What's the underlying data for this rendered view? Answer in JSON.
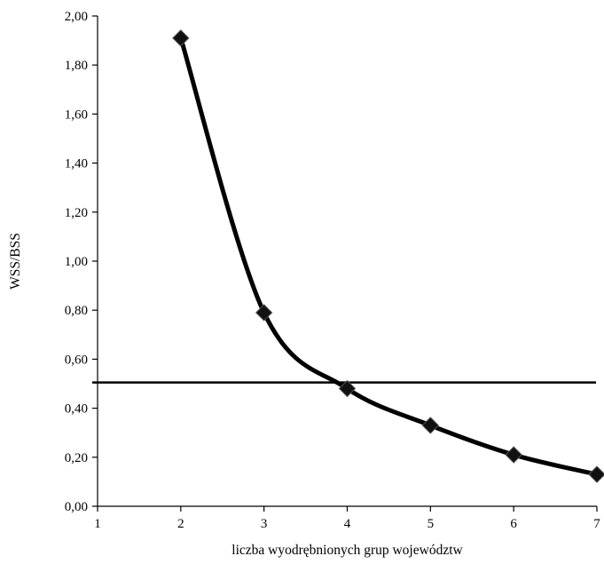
{
  "chart_data": {
    "type": "line",
    "xlabel": "liczba wyodrębnionych grup województw",
    "ylabel": "WSS/BSS",
    "xlim": [
      1,
      7
    ],
    "ylim": [
      0,
      2
    ],
    "x_ticks": [
      "1",
      "2",
      "3",
      "4",
      "5",
      "6",
      "7"
    ],
    "y_ticks": [
      "0,00",
      "0,20",
      "0,40",
      "0,60",
      "0,80",
      "1,00",
      "1,20",
      "1,40",
      "1,60",
      "1,80",
      "2,00"
    ],
    "series": [
      {
        "x": [
          2,
          3,
          4,
          5,
          6,
          7
        ],
        "values": [
          1.91,
          0.79,
          0.48,
          0.33,
          0.21,
          0.13
        ],
        "marker": "diamond",
        "smooth": true,
        "color": "#000000"
      }
    ],
    "reference_line": {
      "y": 0.505,
      "color": "#000000"
    },
    "grid": false,
    "legend": "none"
  }
}
